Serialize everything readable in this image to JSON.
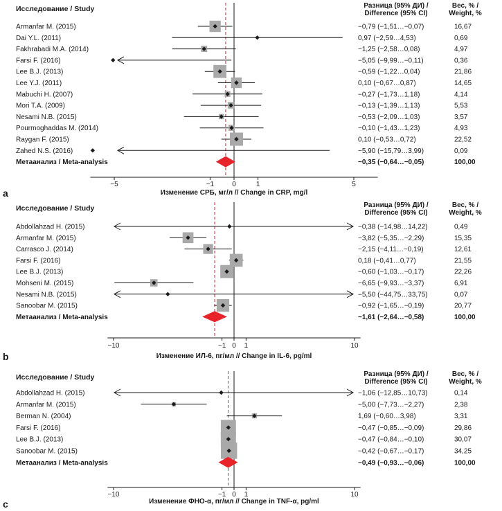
{
  "chart_data": [
    {
      "type": "forest",
      "panel_label": "a",
      "header_study": "Исследование / Study",
      "header_diff_1": "Разница (95% ДИ) /",
      "header_diff_2": "Difference (95% CI)",
      "header_weight_1": "Вес, % /",
      "header_weight_2": "Weight, %",
      "xlabel": "Изменение СРБ, мг/л // Change in CRP, mg/l",
      "xlim": [
        -6,
        6
      ],
      "ticks": [
        -5,
        -1,
        0,
        1,
        5
      ],
      "reference_line": 0,
      "pooled_line": -0.35,
      "studies": [
        {
          "name": "Armanfar M. (2015)",
          "est": -0.79,
          "lo": -1.51,
          "hi": -0.07,
          "ci_text": "−0,79 (−1,51…−0,07)",
          "weight": 16.67,
          "weight_text": "16,67"
        },
        {
          "name": "Dai Y.L. (2011)",
          "est": 0.97,
          "lo": -2.59,
          "hi": 4.53,
          "ci_text": "0,97 (−2,59…4,53)",
          "weight": 0.69,
          "weight_text": "0,69"
        },
        {
          "name": "Fakhrabadi M.A. (2014)",
          "est": -1.25,
          "lo": -2.58,
          "hi": 0.08,
          "ci_text": "−1,25 (−2,58…0,08)",
          "weight": 4.97,
          "weight_text": "4,97"
        },
        {
          "name": "Farsi F. (2016)",
          "est": -5.05,
          "lo": -9.99,
          "hi": -0.11,
          "ci_text": "−5,05 (−9,99…−0,11)",
          "weight": 0.36,
          "weight_text": "0,36"
        },
        {
          "name": "Lee B.J. (2013)",
          "est": -0.59,
          "lo": -1.22,
          "hi": 0.04,
          "ci_text": "−0,59 (−1,22…0,04)",
          "weight": 21.86,
          "weight_text": "21,86"
        },
        {
          "name": "Lee Y.J. (2011)",
          "est": 0.1,
          "lo": -0.67,
          "hi": 0.87,
          "ci_text": "0,10 (−0,67…0,87)",
          "weight": 14.65,
          "weight_text": "14,65"
        },
        {
          "name": "Mabuchi H. (2007)",
          "est": -0.27,
          "lo": -1.73,
          "hi": 1.18,
          "ci_text": "−0,27 (−1,73…1,18)",
          "weight": 4.14,
          "weight_text": "4,14"
        },
        {
          "name": "Mori T.A. (2009)",
          "est": -0.13,
          "lo": -1.39,
          "hi": 1.13,
          "ci_text": "−0,13 (−1,39…1,13)",
          "weight": 5.53,
          "weight_text": "5,53"
        },
        {
          "name": "Nesami N.B. (2015)",
          "est": -0.53,
          "lo": -2.09,
          "hi": 1.03,
          "ci_text": "−0,53 (−2,09…1,03)",
          "weight": 3.57,
          "weight_text": "3,57"
        },
        {
          "name": "Pourmoghaddas M. (2014)",
          "est": -0.1,
          "lo": -1.43,
          "hi": 1.23,
          "ci_text": "−0,10 (−1,43…1,23)",
          "weight": 4.93,
          "weight_text": "4,93"
        },
        {
          "name": "Raygan F. (2015)",
          "est": 0.1,
          "lo": -0.53,
          "hi": 0.72,
          "ci_text": "0,10 (−0,53…0,72)",
          "weight": 22.52,
          "weight_text": "22,52"
        },
        {
          "name": "Zahed N.S. (2016)",
          "est": -5.9,
          "lo": -15.79,
          "hi": 3.99,
          "ci_text": "−5,90 (−15,79…3,99)",
          "weight": 0.09,
          "weight_text": "0,09"
        }
      ],
      "meta": {
        "name": "Метаанализ / Meta-analysis",
        "est": -0.35,
        "lo": -0.64,
        "hi": -0.05,
        "ci_text": "−0,35 (−0,64…−0,05)",
        "weight_text": "100,00"
      }
    },
    {
      "type": "forest",
      "panel_label": "b",
      "header_study": "Исследование / Study",
      "header_diff_1": "Разница (95% ДИ) /",
      "header_diff_2": "Difference (95% CI)",
      "header_weight_1": "Вес, % /",
      "header_weight_2": "Weight, %",
      "xlabel": "Изменение ИЛ-6, пг/мл // Change in IL-6, pg/ml",
      "xlim": [
        -10.5,
        10.5
      ],
      "ticks": [
        -10,
        -1,
        0,
        1,
        10
      ],
      "reference_line": 0,
      "pooled_line": -1.61,
      "studies": [
        {
          "name": "Abdollahzad H. (2015)",
          "est": -0.38,
          "lo": -14.98,
          "hi": 14.22,
          "ci_text": "−0,38 (−14,98…14,22)",
          "weight": 0.49,
          "weight_text": "0,49"
        },
        {
          "name": "Armanfar M. (2015)",
          "est": -3.82,
          "lo": -5.35,
          "hi": -2.29,
          "ci_text": "−3,82 (−5,35…−2,29)",
          "weight": 15.35,
          "weight_text": "15,35"
        },
        {
          "name": "Carrasco J. (2014)",
          "est": -2.15,
          "lo": -4.11,
          "hi": -0.19,
          "ci_text": "−2,15 (−4,11…−0,19)",
          "weight": 12.61,
          "weight_text": "12,61"
        },
        {
          "name": "Farsi F. (2016)",
          "est": 0.18,
          "lo": -0.41,
          "hi": 0.77,
          "ci_text": "0,18 (−0,41…0,77)",
          "weight": 21.55,
          "weight_text": "21,55"
        },
        {
          "name": "Lee B.J. (2013)",
          "est": -0.6,
          "lo": -1.03,
          "hi": -0.17,
          "ci_text": "−0,60 (−1,03…−0,17)",
          "weight": 22.26,
          "weight_text": "22,26"
        },
        {
          "name": "Mohseni M. (2015)",
          "est": -6.65,
          "lo": -9.93,
          "hi": -3.37,
          "ci_text": "−6,65 (−9,93…−3,37)",
          "weight": 6.91,
          "weight_text": "6,91"
        },
        {
          "name": "Nesami N.B. (2015)",
          "est": -5.5,
          "lo": -44.75,
          "hi": 33.75,
          "ci_text": "−5,50 (−44,75…33,75)",
          "weight": 0.07,
          "weight_text": "0,07"
        },
        {
          "name": "Sanoobar M. (2015)",
          "est": -0.92,
          "lo": -1.65,
          "hi": -0.19,
          "ci_text": "−0,92 (−1,65…−0,19)",
          "weight": 20.77,
          "weight_text": "20,77"
        }
      ],
      "meta": {
        "name": "Метаанализ / Meta-analysis",
        "est": -1.61,
        "lo": -2.64,
        "hi": -0.58,
        "ci_text": "−1,61 (−2,64…−0,58)",
        "weight_text": "100,00"
      }
    },
    {
      "type": "forest",
      "panel_label": "c",
      "header_study": "Исследование / Study",
      "header_diff_1": "Разница (95% ДИ) /",
      "header_diff_2": "Difference (95% CI)",
      "header_weight_1": "Вес, % /",
      "header_weight_2": "Weight, %",
      "xlabel": "Изменение ФНО-α, пг/мл // Change in TNF-α, pg/ml",
      "xlim": [
        -10.5,
        10.5
      ],
      "ticks": [
        -10,
        -1,
        0,
        1,
        10
      ],
      "reference_line": 0,
      "pooled_line": -0.49,
      "studies": [
        {
          "name": "Abdollahzad H. (2015)",
          "est": -1.06,
          "lo": -12.85,
          "hi": 10.73,
          "ci_text": "−1,06 (−12,85…10,73)",
          "weight": 0.14,
          "weight_text": "0,14"
        },
        {
          "name": "Armanfar M. (2015)",
          "est": -5.0,
          "lo": -7.73,
          "hi": -2.27,
          "ci_text": "−5,00 (−7,73…−2,27)",
          "weight": 2.38,
          "weight_text": "2,38"
        },
        {
          "name": "Berman N. (2004)",
          "est": 1.69,
          "lo": -0.6,
          "hi": 3.98,
          "ci_text": "1,69 (−0,60…3,98)",
          "weight": 3.31,
          "weight_text": "3,31"
        },
        {
          "name": "Farsi F. (2016)",
          "est": -0.47,
          "lo": -0.85,
          "hi": -0.09,
          "ci_text": "−0,47 (−0,85…−0,09)",
          "weight": 29.86,
          "weight_text": "29,86"
        },
        {
          "name": "Lee B.J. (2013)",
          "est": -0.47,
          "lo": -0.84,
          "hi": -0.1,
          "ci_text": "−0,47 (−0,84…−0,10)",
          "weight": 30.07,
          "weight_text": "30,07"
        },
        {
          "name": "Sanoobar M. (2015)",
          "est": -0.42,
          "lo": -0.67,
          "hi": -0.17,
          "ci_text": "−0,42 (−0,67…−0,17)",
          "weight": 34.25,
          "weight_text": "34,25"
        }
      ],
      "meta": {
        "name": "Метаанализ / Meta-analysis",
        "est": -0.49,
        "lo": -0.93,
        "hi": -0.06,
        "ci_text": "−0,49 (−0,93…−0,06)",
        "weight_text": "100,00"
      }
    }
  ],
  "colors": {
    "box": "#a9a9a9",
    "diamond": "#e8242b",
    "pooled_line": "#e8242b",
    "line": "#1a1a1a"
  }
}
